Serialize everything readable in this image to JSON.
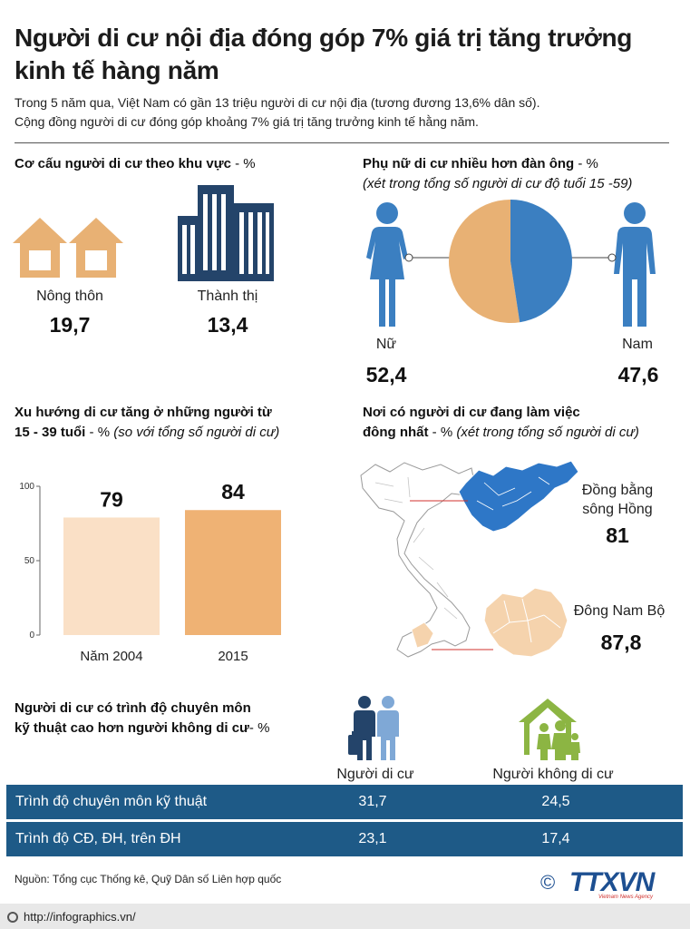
{
  "title": "Người di cư nội địa đóng góp 7% giá trị tăng trưởng kinh tế hàng năm",
  "intro_line1": "Trong 5 năm qua, Việt Nam có gần 13 triệu người di cư nội địa (tương đương 13,6% dân số).",
  "intro_line2": "Cộng đồng người di cư đóng góp khoảng 7% giá trị tăng trưởng kinh tế hằng năm.",
  "region": {
    "heading": "Cơ cấu người di cư theo khu vực",
    "unit": " - %",
    "rural_label": "Nông thôn",
    "rural_value": "19,7",
    "urban_label": "Thành thị",
    "urban_value": "13,4"
  },
  "gender": {
    "heading": "Phụ nữ di cư nhiều hơn đàn ông",
    "unit": " - %",
    "note": "(xét trong tổng số người di cư độ tuổi 15 -59)",
    "female_label": "Nữ",
    "female_value": "52,4",
    "male_label": "Nam",
    "male_value": "47,6"
  },
  "age": {
    "heading_line1": "Xu hướng di cư tăng ở những người từ",
    "heading_line2": "15 - 39 tuổi",
    "unit": " - %",
    "note": " (so với tổng số người di cư)"
  },
  "work": {
    "heading_line1": "Nơi có người di cư đang làm việc",
    "heading_line2": "đông nhất",
    "unit": " - %",
    "note": " (xét trong tổng số người di cư)",
    "north_label_1": "Đồng bằng",
    "north_label_2": "sông Hồng",
    "north_value": "81",
    "south_label": "Đông Nam Bộ",
    "south_value": "87,8"
  },
  "skills": {
    "heading_line1": "Người di cư có trình độ chuyên môn",
    "heading_line2": "kỹ thuật cao hơn người không di cư",
    "unit": "- %",
    "col_migrant": "Người di cư",
    "col_nonmigrant": "Người không di cư",
    "rows": [
      {
        "label": "Trình độ chuyên môn kỹ thuật",
        "migrant": "31,7",
        "nonmigrant": "24,5"
      },
      {
        "label": "Trình độ CĐ, ĐH, trên ĐH",
        "migrant": "23,1",
        "nonmigrant": "17,4"
      }
    ]
  },
  "source": "Nguồn: Tổng cục Thống kê, Quỹ Dân số Liên hợp quốc",
  "copyright": "©",
  "logo": "TTXVN",
  "logo_sub": "Vietnam News Agency",
  "url": "http://infographics.vn/",
  "colors": {
    "orange": "#e8b174",
    "pale_orange": "#fae0c6",
    "bar_orange": "#efb274",
    "blue": "#3b7fc1",
    "dark_blue": "#1e5a87",
    "navy": "#24446a",
    "green": "#8cb543",
    "light_blue": "#7fa8d6",
    "logo_blue": "#1d4f91",
    "logo_red": "#d0302d"
  },
  "chart_data": [
    {
      "type": "pie",
      "categories": [
        "Nữ",
        "Nam"
      ],
      "values": [
        52.4,
        47.6
      ]
    },
    {
      "type": "bar",
      "categories": [
        "Năm 2004",
        "2015"
      ],
      "values": [
        79,
        84
      ],
      "ylim": [
        0,
        100
      ],
      "yticks": [
        0,
        50,
        100
      ]
    }
  ]
}
